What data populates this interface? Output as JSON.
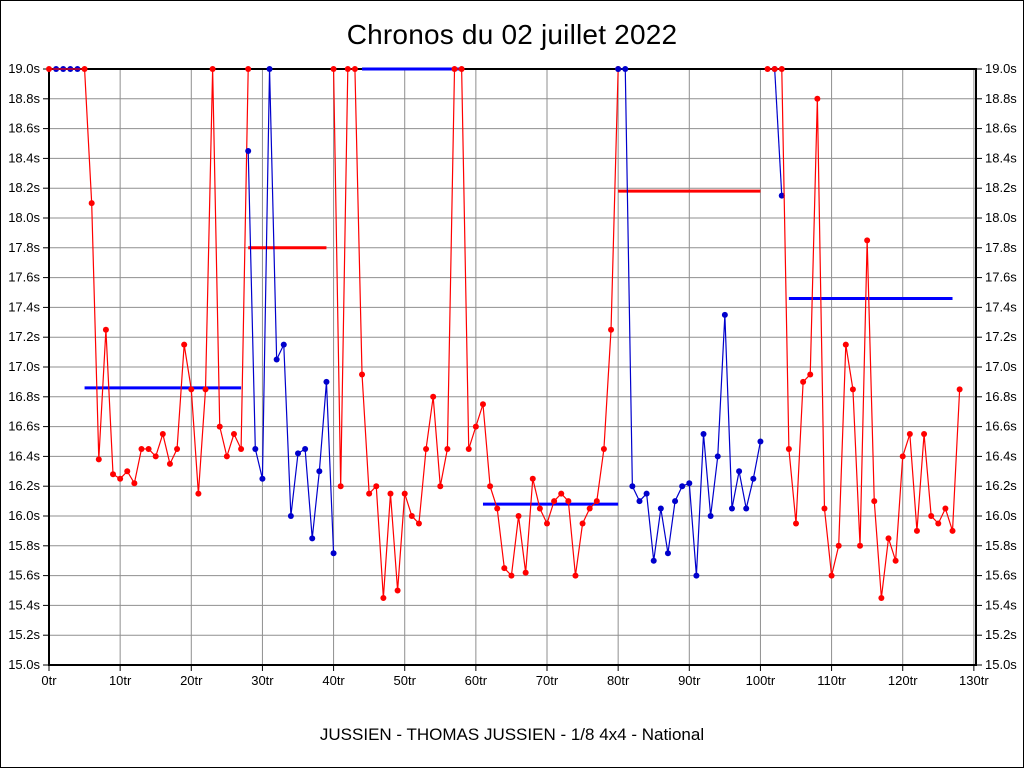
{
  "title": "Chronos du 02 juillet 2022",
  "footer": "JUSSIEN - THOMAS JUSSIEN - 1/8 4x4 - National",
  "chart_data": {
    "type": "line",
    "title": "Chronos du 02 juillet 2022",
    "xlabel": "tr",
    "ylabel": "s",
    "xlim": [
      0,
      130.3
    ],
    "ylim": [
      15.0,
      19.0
    ],
    "grid": true,
    "legend": "none",
    "colors": {
      "red": "#ff0000",
      "blue": "#0000cc",
      "average_red": "#ff0000",
      "average_blue": "#0000ff",
      "grid": "#8f8f8f",
      "axis": "#000000"
    },
    "y_ticks": [
      {
        "v": 15.0,
        "label": "15.0s"
      },
      {
        "v": 15.2,
        "label": "15.2s"
      },
      {
        "v": 15.4,
        "label": "15.4s"
      },
      {
        "v": 15.6,
        "label": "15.6s"
      },
      {
        "v": 15.8,
        "label": "15.8s"
      },
      {
        "v": 16.0,
        "label": "16.0s"
      },
      {
        "v": 16.2,
        "label": "16.2s"
      },
      {
        "v": 16.4,
        "label": "16.4s"
      },
      {
        "v": 16.6,
        "label": "16.6s"
      },
      {
        "v": 16.8,
        "label": "16.8s"
      },
      {
        "v": 17.0,
        "label": "17.0s"
      },
      {
        "v": 17.2,
        "label": "17.2s"
      },
      {
        "v": 17.4,
        "label": "17.4s"
      },
      {
        "v": 17.6,
        "label": "17.6s"
      },
      {
        "v": 17.8,
        "label": "17.8s"
      },
      {
        "v": 18.0,
        "label": "18.0s"
      },
      {
        "v": 18.2,
        "label": "18.2s"
      },
      {
        "v": 18.4,
        "label": "18.4s"
      },
      {
        "v": 18.6,
        "label": "18.6s"
      },
      {
        "v": 18.8,
        "label": "18.8s"
      },
      {
        "v": 19.0,
        "label": "19.0s"
      }
    ],
    "x_ticks": [
      {
        "v": 0,
        "label": "0tr"
      },
      {
        "v": 10,
        "label": "10tr"
      },
      {
        "v": 20,
        "label": "20tr"
      },
      {
        "v": 30,
        "label": "30tr"
      },
      {
        "v": 40,
        "label": "40tr"
      },
      {
        "v": 50,
        "label": "50tr"
      },
      {
        "v": 60,
        "label": "60tr"
      },
      {
        "v": 70,
        "label": "70tr"
      },
      {
        "v": 80,
        "label": "80tr"
      },
      {
        "v": 90,
        "label": "90tr"
      },
      {
        "v": 100,
        "label": "100tr"
      },
      {
        "v": 110,
        "label": "110tr"
      },
      {
        "v": 120,
        "label": "120tr"
      },
      {
        "v": 130,
        "label": "130tr"
      }
    ],
    "series": [
      {
        "name": "opening-laps-blue",
        "color": "blue",
        "points": [
          [
            1,
            19.0
          ],
          [
            2,
            19.0
          ],
          [
            3,
            19.0
          ],
          [
            4,
            19.0
          ]
        ]
      },
      {
        "name": "run-1-red",
        "color": "red",
        "points": [
          [
            0,
            19.0
          ],
          [
            5,
            19.0
          ],
          [
            6,
            18.1
          ],
          [
            7,
            16.38
          ],
          [
            8,
            17.25
          ],
          [
            9,
            16.28
          ],
          [
            10,
            16.25
          ],
          [
            11,
            16.3
          ],
          [
            12,
            16.22
          ],
          [
            13,
            16.45
          ],
          [
            14,
            16.45
          ],
          [
            15,
            16.4
          ],
          [
            16,
            16.55
          ],
          [
            17,
            16.35
          ],
          [
            18,
            16.45
          ],
          [
            19,
            17.15
          ],
          [
            20,
            16.85
          ],
          [
            21,
            16.15
          ],
          [
            22,
            16.85
          ],
          [
            23,
            19.0
          ],
          [
            24,
            16.6
          ],
          [
            25,
            16.4
          ],
          [
            26,
            16.55
          ],
          [
            27,
            16.45
          ],
          [
            28,
            19.0
          ]
        ]
      },
      {
        "name": "run-2-blue",
        "color": "blue",
        "points": [
          [
            28,
            18.45
          ],
          [
            29,
            16.45
          ],
          [
            30,
            16.25
          ],
          [
            31,
            19.0
          ],
          [
            32,
            17.05
          ],
          [
            33,
            17.15
          ],
          [
            34,
            16.0
          ],
          [
            35,
            16.42
          ],
          [
            36,
            16.45
          ],
          [
            37,
            15.85
          ],
          [
            38,
            16.3
          ],
          [
            39,
            16.9
          ],
          [
            40,
            15.75
          ]
        ]
      },
      {
        "name": "run-3-red",
        "color": "red",
        "points": [
          [
            40,
            19.0
          ],
          [
            41,
            16.2
          ],
          [
            42,
            19.0
          ],
          [
            43,
            19.0
          ],
          [
            44,
            16.95
          ],
          [
            45,
            16.15
          ],
          [
            46,
            16.2
          ],
          [
            47,
            15.45
          ],
          [
            48,
            16.15
          ],
          [
            49,
            15.5
          ],
          [
            50,
            16.15
          ],
          [
            51,
            16.0
          ],
          [
            52,
            15.95
          ],
          [
            53,
            16.45
          ],
          [
            54,
            16.8
          ],
          [
            55,
            16.2
          ],
          [
            56,
            16.45
          ],
          [
            57,
            19.0
          ],
          [
            58,
            19.0
          ],
          [
            59,
            16.45
          ],
          [
            60,
            16.6
          ],
          [
            61,
            16.75
          ],
          [
            62,
            16.2
          ],
          [
            63,
            16.05
          ],
          [
            64,
            15.65
          ],
          [
            65,
            15.6
          ],
          [
            66,
            16.0
          ],
          [
            67,
            15.62
          ],
          [
            68,
            16.25
          ],
          [
            69,
            16.05
          ],
          [
            70,
            15.95
          ],
          [
            71,
            16.1
          ],
          [
            72,
            16.15
          ],
          [
            73,
            16.1
          ],
          [
            74,
            15.6
          ],
          [
            75,
            15.95
          ],
          [
            76,
            16.05
          ],
          [
            77,
            16.1
          ],
          [
            78,
            16.45
          ],
          [
            79,
            17.25
          ],
          [
            80,
            19.0
          ]
        ]
      },
      {
        "name": "run-4-blue",
        "color": "blue",
        "points": [
          [
            80,
            19.0
          ],
          [
            81,
            19.0
          ],
          [
            82,
            16.2
          ],
          [
            83,
            16.1
          ],
          [
            84,
            16.15
          ],
          [
            85,
            15.7
          ],
          [
            86,
            16.05
          ],
          [
            87,
            15.75
          ],
          [
            88,
            16.1
          ],
          [
            89,
            16.2
          ],
          [
            90,
            16.22
          ],
          [
            91,
            15.6
          ],
          [
            92,
            16.55
          ],
          [
            93,
            16.0
          ],
          [
            94,
            16.4
          ],
          [
            95,
            17.35
          ],
          [
            96,
            16.05
          ],
          [
            97,
            16.3
          ],
          [
            98,
            16.05
          ],
          [
            99,
            16.25
          ],
          [
            100,
            16.5
          ]
        ]
      },
      {
        "name": "run-5-start-blue",
        "color": "blue",
        "points": [
          [
            102,
            19.0
          ],
          [
            103,
            18.15
          ]
        ]
      },
      {
        "name": "run-5-red",
        "color": "red",
        "points": [
          [
            101,
            19.0
          ],
          [
            102,
            19.0
          ],
          [
            103,
            19.0
          ],
          [
            104,
            16.45
          ],
          [
            105,
            15.95
          ],
          [
            106,
            16.9
          ],
          [
            107,
            16.95
          ],
          [
            108,
            18.8
          ],
          [
            109,
            16.05
          ],
          [
            110,
            15.6
          ],
          [
            111,
            15.8
          ],
          [
            112,
            17.15
          ],
          [
            113,
            16.85
          ],
          [
            114,
            15.8
          ],
          [
            115,
            17.85
          ],
          [
            116,
            16.1
          ],
          [
            117,
            15.45
          ],
          [
            118,
            15.85
          ],
          [
            119,
            15.7
          ],
          [
            120,
            16.4
          ],
          [
            121,
            16.55
          ],
          [
            122,
            15.9
          ],
          [
            123,
            16.55
          ],
          [
            124,
            16.0
          ],
          [
            125,
            15.95
          ],
          [
            126,
            16.05
          ],
          [
            127,
            15.9
          ],
          [
            128,
            16.85
          ]
        ]
      }
    ],
    "average_lines": [
      {
        "x1": 5,
        "x2": 27,
        "y": 16.86,
        "color": "blue"
      },
      {
        "x1": 28,
        "x2": 39,
        "y": 17.8,
        "color": "red"
      },
      {
        "x1": 44,
        "x2": 58,
        "y": 19.0,
        "color": "blue"
      },
      {
        "x1": 61,
        "x2": 80,
        "y": 16.08,
        "color": "blue"
      },
      {
        "x1": 80,
        "x2": 100,
        "y": 18.18,
        "color": "red"
      },
      {
        "x1": 104,
        "x2": 127,
        "y": 17.46,
        "color": "blue"
      }
    ]
  }
}
